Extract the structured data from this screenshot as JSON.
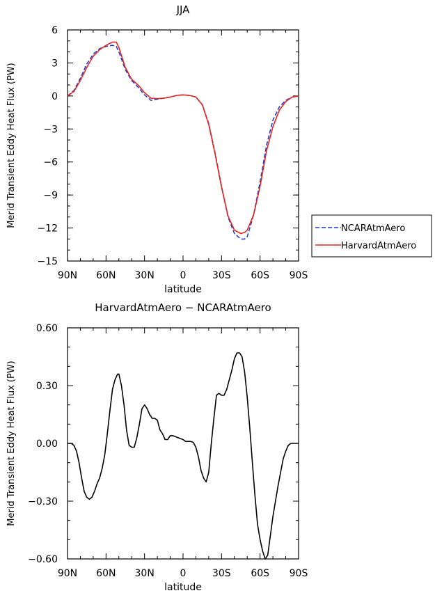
{
  "chart_data": [
    {
      "type": "line",
      "title": "JJA",
      "xlabel": "latitude",
      "ylabel": "Merid Transient Eddy Heat Flux (PW)",
      "xlim": [
        90,
        -90
      ],
      "ylim": [
        -15,
        6
      ],
      "x_ticks": [
        90,
        60,
        30,
        0,
        -30,
        -60,
        -90
      ],
      "x_tick_labels": [
        "90N",
        "60N",
        "30N",
        "0",
        "30S",
        "60S",
        "90S"
      ],
      "y_ticks": [
        6,
        3,
        0,
        -3,
        -6,
        -9,
        -12,
        -15
      ],
      "y_tick_labels": [
        "6",
        "3",
        "0",
        "−3",
        "−6",
        "−9",
        "−12",
        "−15"
      ],
      "legend": "right",
      "series": [
        {
          "name": "NCARAtmAero",
          "color": "#1f3fd6",
          "dash": "dashed",
          "x": [
            90,
            85,
            80,
            75,
            70,
            65,
            60,
            55,
            52,
            50,
            45,
            40,
            35,
            30,
            25,
            20,
            15,
            10,
            5,
            0,
            -5,
            -10,
            -15,
            -20,
            -25,
            -30,
            -35,
            -40,
            -45,
            -48,
            -50,
            -55,
            -60,
            -65,
            -70,
            -75,
            -80,
            -85,
            -90
          ],
          "y": [
            0,
            0.5,
            1.6,
            2.9,
            3.8,
            4.3,
            4.5,
            4.6,
            4.5,
            4.0,
            2.4,
            1.4,
            0.8,
            0.1,
            -0.4,
            -0.3,
            -0.2,
            -0.1,
            0.05,
            0.1,
            0.05,
            -0.1,
            -0.8,
            -2.5,
            -5.2,
            -8.2,
            -11.0,
            -12.5,
            -13.0,
            -13.0,
            -12.8,
            -10.8,
            -7.8,
            -4.5,
            -2.2,
            -1.0,
            -0.4,
            -0.1,
            0
          ]
        },
        {
          "name": "HarvardAtmAero",
          "color": "#e8231c",
          "dash": "solid",
          "x": [
            90,
            85,
            80,
            75,
            70,
            65,
            60,
            55,
            52,
            50,
            45,
            40,
            35,
            30,
            25,
            20,
            15,
            10,
            5,
            0,
            -5,
            -10,
            -15,
            -20,
            -25,
            -30,
            -35,
            -40,
            -45,
            -48,
            -50,
            -55,
            -60,
            -65,
            -70,
            -75,
            -80,
            -85,
            -90
          ],
          "y": [
            0,
            0.4,
            1.4,
            2.6,
            3.6,
            4.2,
            4.6,
            4.9,
            4.9,
            4.4,
            2.6,
            1.5,
            1.0,
            0.3,
            -0.2,
            -0.25,
            -0.2,
            -0.1,
            0.05,
            0.1,
            0.05,
            -0.1,
            -0.8,
            -2.6,
            -5.3,
            -8.3,
            -10.9,
            -12.2,
            -12.5,
            -12.4,
            -12.2,
            -10.8,
            -8.2,
            -5.0,
            -2.8,
            -1.3,
            -0.5,
            -0.1,
            0
          ]
        }
      ]
    },
    {
      "type": "line",
      "title": "HarvardAtmAero − NCARAtmAero",
      "xlabel": "latitude",
      "ylabel": "Merid Transient Eddy Heat Flux (PW)",
      "xlim": [
        90,
        -90
      ],
      "ylim": [
        -0.6,
        0.6
      ],
      "x_ticks": [
        90,
        60,
        30,
        0,
        -30,
        -60,
        -90
      ],
      "x_tick_labels": [
        "90N",
        "60N",
        "30N",
        "0",
        "30S",
        "60S",
        "90S"
      ],
      "y_ticks": [
        0.6,
        0.3,
        0,
        -0.3,
        -0.6
      ],
      "y_tick_labels": [
        "0.60",
        "0.30",
        "0.00",
        "−0.30",
        "−0.60"
      ],
      "series": [
        {
          "name": "",
          "color": "#000000",
          "dash": "solid",
          "x": [
            90,
            87,
            85,
            83,
            81,
            79,
            77,
            75,
            73,
            71,
            69,
            67,
            65,
            63,
            61,
            59,
            57,
            55,
            53,
            51,
            50,
            48,
            46,
            44,
            42,
            40,
            38,
            36,
            34,
            32,
            30,
            28,
            26,
            24,
            22,
            20,
            18,
            16,
            14,
            12,
            10,
            8,
            6,
            4,
            2,
            0,
            -2,
            -4,
            -6,
            -8,
            -10,
            -12,
            -14,
            -16,
            -18,
            -20,
            -22,
            -24,
            -26,
            -28,
            -30,
            -32,
            -34,
            -36,
            -38,
            -40,
            -42,
            -44,
            -46,
            -48,
            -50,
            -52,
            -54,
            -56,
            -58,
            -60,
            -62,
            -64,
            -66,
            -68,
            -70,
            -72,
            -74,
            -76,
            -78,
            -80,
            -82,
            -84,
            -86,
            -88,
            -90
          ],
          "y": [
            0,
            0,
            -0.01,
            -0.04,
            -0.1,
            -0.18,
            -0.25,
            -0.28,
            -0.29,
            -0.28,
            -0.25,
            -0.21,
            -0.18,
            -0.13,
            -0.06,
            0.05,
            0.17,
            0.28,
            0.33,
            0.36,
            0.36,
            0.3,
            0.2,
            0.07,
            -0.01,
            -0.02,
            -0.02,
            0.03,
            0.1,
            0.18,
            0.2,
            0.18,
            0.15,
            0.13,
            0.13,
            0.12,
            0.07,
            0.05,
            0.02,
            0.02,
            0.04,
            0.04,
            0.035,
            0.03,
            0.025,
            0.02,
            0.01,
            0.01,
            0.01,
            0.005,
            -0.02,
            -0.07,
            -0.14,
            -0.18,
            -0.2,
            -0.15,
            0.0,
            0.13,
            0.25,
            0.26,
            0.25,
            0.25,
            0.28,
            0.33,
            0.38,
            0.44,
            0.47,
            0.47,
            0.45,
            0.37,
            0.24,
            0.08,
            -0.1,
            -0.27,
            -0.42,
            -0.5,
            -0.56,
            -0.6,
            -0.58,
            -0.48,
            -0.38,
            -0.3,
            -0.22,
            -0.15,
            -0.08,
            -0.04,
            -0.01,
            0,
            0,
            0,
            0
          ]
        }
      ]
    }
  ]
}
